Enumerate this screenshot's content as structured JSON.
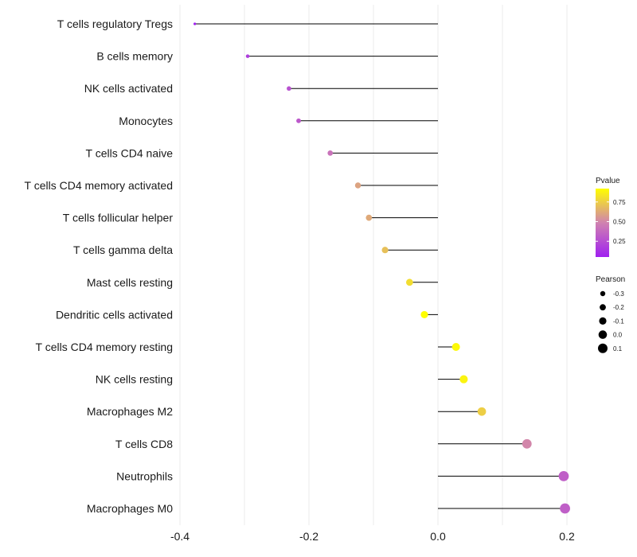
{
  "chart_data": {
    "type": "lollipop",
    "title": "",
    "xlabel": "",
    "ylabel": "",
    "xlim": [
      -0.4,
      0.2
    ],
    "xticks": [
      -0.4,
      -0.2,
      0.0,
      0.2
    ],
    "xtick_labels": [
      "-0.4",
      "-0.2",
      "0.0",
      "0.2"
    ],
    "grid": true,
    "categories": [
      "T cells regulatory  Tregs",
      "B cells memory",
      "NK cells activated",
      "Monocytes",
      "T cells CD4 naive",
      "T cells CD4 memory activated",
      "T cells follicular helper",
      "T cells gamma delta",
      "Mast cells resting",
      "Dendritic cells activated",
      "T cells CD4 memory resting",
      "NK cells resting",
      "Macrophages M2",
      "T cells CD8",
      "Neutrophils",
      "Macrophages M0"
    ],
    "pearson": [
      -0.377,
      -0.295,
      -0.231,
      -0.216,
      -0.167,
      -0.124,
      -0.107,
      -0.082,
      -0.044,
      -0.021,
      0.028,
      0.04,
      0.068,
      0.138,
      0.195,
      0.197
    ],
    "pvalue": [
      0.05,
      0.18,
      0.27,
      0.3,
      0.42,
      0.6,
      0.62,
      0.7,
      0.8,
      0.92,
      0.9,
      0.88,
      0.75,
      0.5,
      0.33,
      0.33
    ],
    "legend_color": {
      "title": "Pvalue",
      "breaks": [
        0.25,
        0.5,
        0.75
      ],
      "labels": [
        "0.25",
        "0.50",
        "0.75"
      ],
      "range": [
        0.05,
        0.92
      ],
      "colors": [
        "#a020f0",
        "#d082b0",
        "#ffff00"
      ]
    },
    "legend_size": {
      "title": "Pearson",
      "values": [
        -0.3,
        -0.2,
        -0.1,
        0.0,
        0.1
      ],
      "labels": [
        "-0.3",
        "-0.2",
        "-0.1",
        "0.0",
        "0.1"
      ]
    }
  }
}
